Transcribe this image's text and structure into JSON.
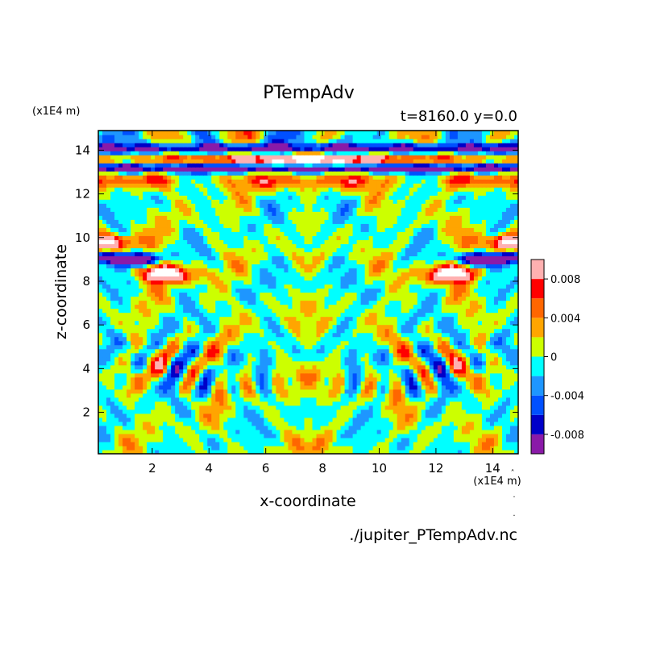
{
  "chart_data": {
    "type": "heatmap",
    "title": "PTempAdv",
    "subtitle": "t=8160.0 y=0.0",
    "xlabel": "x-coordinate",
    "ylabel": "z-coordinate",
    "x_unit": "(x1E4 m)",
    "y_unit": "(x1E4 m)",
    "xlim": [
      0.1,
      14.9
    ],
    "ylim": [
      0.1,
      14.9
    ],
    "x_ticks": [
      2,
      4,
      6,
      8,
      10,
      12,
      14
    ],
    "y_ticks": [
      2,
      4,
      6,
      8,
      10,
      12,
      14
    ],
    "colorbar": {
      "levels": [
        -0.01,
        -0.008,
        -0.006,
        -0.004,
        -0.002,
        0.0,
        0.002,
        0.004,
        0.006,
        0.008,
        0.01
      ],
      "colors": [
        "#8a1aa8",
        "#0000c8",
        "#0050ff",
        "#1e96ff",
        "#00ffff",
        "#ccff00",
        "#ffa500",
        "#ff6600",
        "#ff0000",
        "#ffb0b0"
      ],
      "tick_values": [
        0.008,
        0.004,
        0,
        -0.004,
        -0.008
      ],
      "tick_labels": [
        "0.008",
        "0.004",
        "0",
        "-0.004",
        "-0.008"
      ]
    },
    "grid": false,
    "legend_position": "right"
  },
  "footer": {
    "filename": "./jupiter_PTempAdv.nc"
  }
}
